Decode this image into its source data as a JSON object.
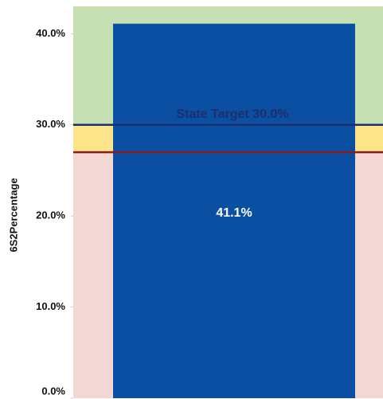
{
  "chart_data": {
    "type": "bar",
    "y_label": "6S2Percentage",
    "categories": [
      null
    ],
    "values": [
      41.1
    ],
    "value_labels": [
      "41.1%"
    ],
    "color": "#0b4fa3",
    "ylim": [
      0,
      43
    ],
    "yticks": [
      {
        "value": 0,
        "label": "0.0%"
      },
      {
        "value": 10,
        "label": "10.0%"
      },
      {
        "value": 20,
        "label": "20.0%"
      },
      {
        "value": 30,
        "label": "30.0%"
      },
      {
        "value": 40,
        "label": "40.0%"
      }
    ],
    "reference_lines": [
      {
        "value": 30,
        "color": "#1d2f6b",
        "label": "State Target 30.0%"
      },
      {
        "value": 27,
        "color": "#8b1a1a"
      }
    ],
    "band_colors": [
      "#c6e0b4",
      "#fde38a",
      "#f2d7d5"
    ]
  }
}
